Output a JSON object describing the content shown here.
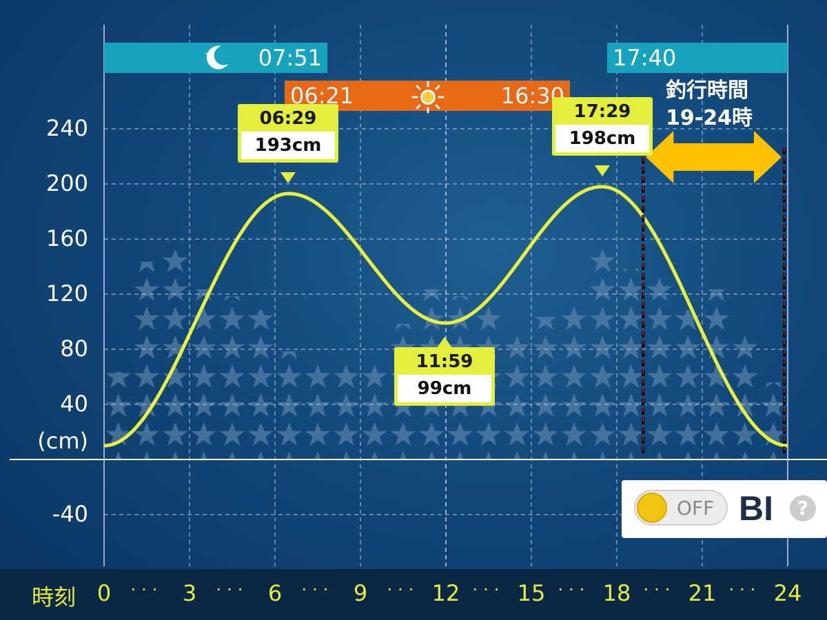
{
  "chart_data": {
    "type": "line",
    "x": [
      0,
      6.483,
      11.983,
      17.483,
      24
    ],
    "y": [
      10,
      193,
      99,
      198,
      10
    ],
    "xlabel": "時刻",
    "ylabel": "(cm)",
    "xlim": [
      0,
      24
    ],
    "ylim": [
      -80,
      280
    ],
    "x_ticks": [
      "0",
      "3",
      "6",
      "9",
      "12",
      "15",
      "18",
      "21",
      "24"
    ],
    "y_ticks": [
      "240",
      "200",
      "160",
      "120",
      "80",
      "40",
      "-40"
    ],
    "grid": true,
    "line_color": "#e8f03c",
    "annotations": [
      {
        "time": "06:29",
        "value": "193cm"
      },
      {
        "time": "11:59",
        "value": "99cm"
      },
      {
        "time": "17:29",
        "value": "198cm"
      }
    ]
  },
  "moon": {
    "rise": "07:51",
    "set": "17:40",
    "icon": "moon-icon"
  },
  "sun": {
    "rise": "06:21",
    "set": "16:30",
    "icon": "sun-icon"
  },
  "fishing": {
    "line1": "釣行時間",
    "line2": "19-24時",
    "start_hour": 19,
    "end_hour": 24,
    "arrow_color": "#ffc200"
  },
  "bi_panel": {
    "toggle_label": "OFF",
    "brand": "BI",
    "help": "?"
  },
  "colors": {
    "moon_bar": "#17a3bd",
    "sun_bar": "#f06b12",
    "label_bg": "#e3ef3a",
    "axis_text": "#e8ec3a"
  }
}
